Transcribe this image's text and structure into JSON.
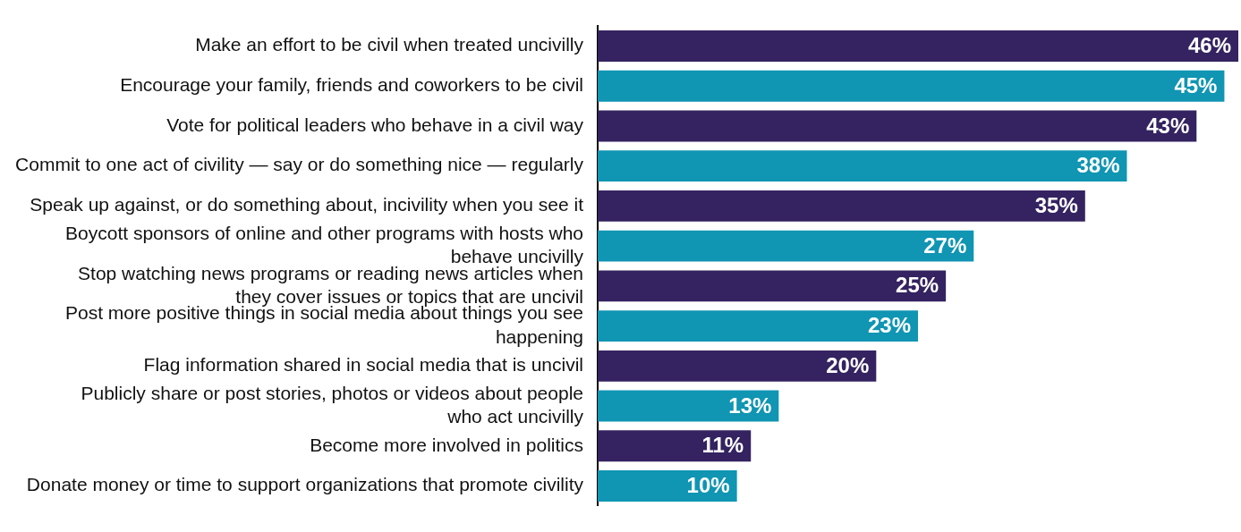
{
  "chart_data": {
    "type": "bar",
    "orientation": "horizontal",
    "categories": [
      "Make an effort to be civil when treated uncivilly",
      "Encourage your family, friends and coworkers to be civil",
      "Vote for political leaders who behave in a civil way",
      "Commit to one act of civility — say or do something nice — regularly",
      "Speak up against, or do something about, incivility when you see it",
      "Boycott sponsors of online and other programs with hosts who behave uncivilly",
      "Stop watching news programs or reading news articles when they cover issues or topics that are uncivil",
      "Post more positive things in social media about things you see happening",
      "Flag information shared in social media that is uncivil",
      "Publicly share or post stories, photos or videos about people who act uncivilly",
      "Become more involved in politics",
      "Donate money or time to support organizations that promote civility"
    ],
    "values": [
      46,
      45,
      43,
      38,
      35,
      27,
      25,
      23,
      20,
      13,
      11,
      10
    ],
    "colors": [
      "#342360",
      "#1095b3",
      "#342360",
      "#1095b3",
      "#342360",
      "#1095b3",
      "#342360",
      "#1095b3",
      "#342360",
      "#1095b3",
      "#342360",
      "#1095b3"
    ],
    "value_labels": [
      "46%",
      "45%",
      "43%",
      "38%",
      "35%",
      "27%",
      "25%",
      "23%",
      "20%",
      "13%",
      "11%",
      "10%"
    ],
    "xlim": [
      0,
      46
    ],
    "legend": false,
    "tick_labels": "y"
  }
}
